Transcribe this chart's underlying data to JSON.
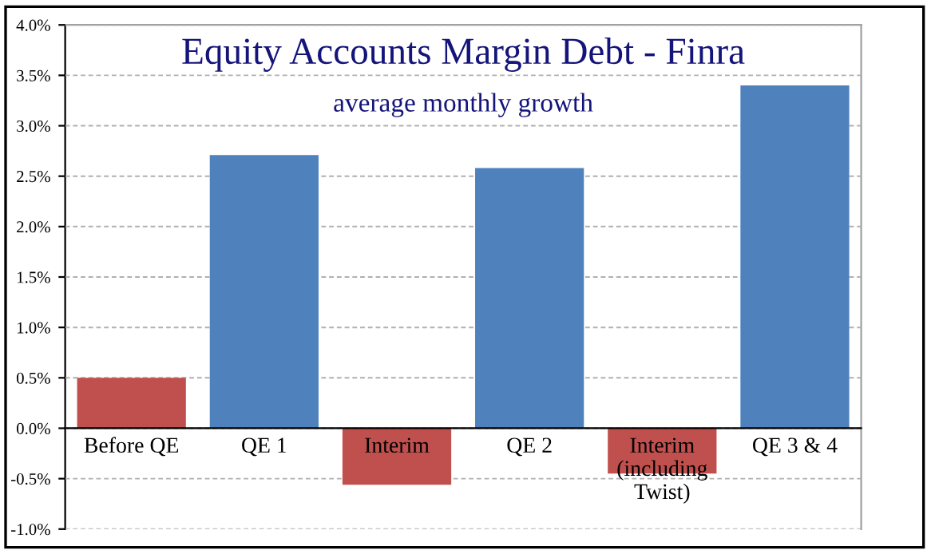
{
  "chart_data": {
    "type": "bar",
    "title": "Equity Accounts Margin Debt - Finra",
    "subtitle": "average monthly growth",
    "categories": [
      "Before QE",
      "QE 1",
      "Interim",
      "QE 2",
      "Interim\n(including\nTwist)",
      "QE 3 & 4"
    ],
    "values": [
      0.5,
      2.71,
      -0.56,
      2.58,
      -0.45,
      3.4
    ],
    "colors": [
      "#c0504d",
      "#4f81bd",
      "#c0504d",
      "#4f81bd",
      "#c0504d",
      "#4f81bd"
    ],
    "ylim": [
      -1.0,
      4.0
    ],
    "yticks": [
      {
        "value": -1.0,
        "label": "-1.0%"
      },
      {
        "value": -0.5,
        "label": "-0.5%"
      },
      {
        "value": 0.0,
        "label": "0.0%"
      },
      {
        "value": 0.5,
        "label": "0.5%"
      },
      {
        "value": 1.0,
        "label": "1.0%"
      },
      {
        "value": 1.5,
        "label": "1.5%"
      },
      {
        "value": 2.0,
        "label": "2.0%"
      },
      {
        "value": 2.5,
        "label": "2.5%"
      },
      {
        "value": 3.0,
        "label": "3.0%"
      },
      {
        "value": 3.5,
        "label": "3.5%"
      },
      {
        "value": 4.0,
        "label": "4.0%"
      }
    ],
    "grid": "y"
  }
}
